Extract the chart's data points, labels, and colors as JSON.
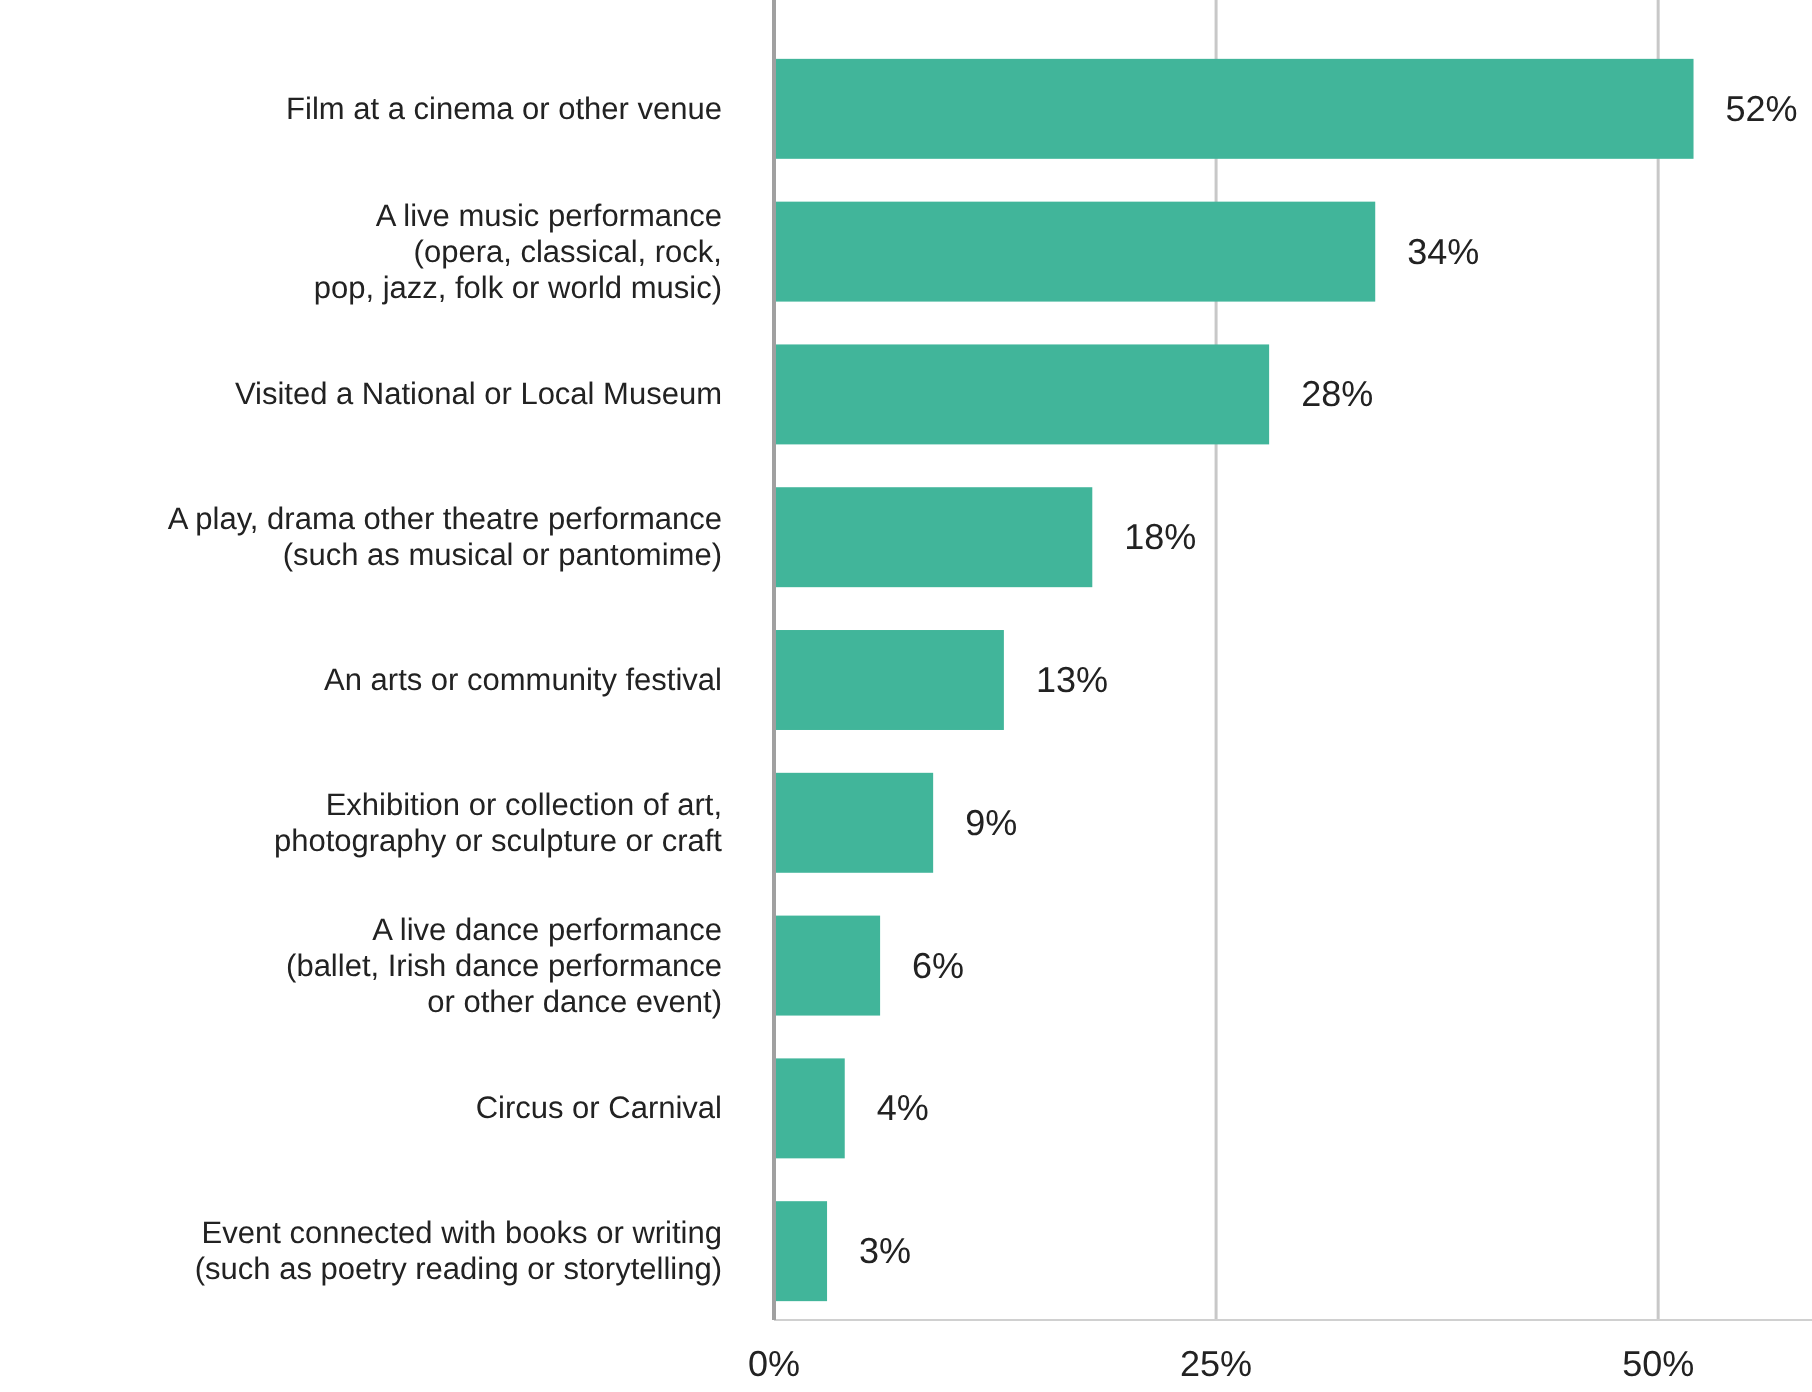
{
  "chart_data": {
    "type": "bar",
    "orientation": "horizontal",
    "categories": [
      "Film at a cinema or other venue",
      "A live music performance\n(opera, classical, rock,\npop, jazz, folk or world music)",
      "Visited a National or Local Museum",
      "A play, drama other theatre performance\n(such as musical or pantomime)",
      "An arts or community festival",
      "Exhibition or collection of art,\nphotography or sculpture or craft",
      "A live dance performance\n(ballet, Irish dance performance\nor other dance event)",
      "Circus or Carnival",
      "Event connected with books or writing\n(such as poetry reading or storytelling)"
    ],
    "values": [
      52,
      34,
      28,
      18,
      13,
      9,
      6,
      4,
      3
    ],
    "value_labels": [
      "52%",
      "34%",
      "28%",
      "18%",
      "13%",
      "9%",
      "6%",
      "4%",
      "3%"
    ],
    "color": "#41b59a",
    "xlim": [
      0,
      58.7
    ],
    "xticks": [
      {
        "value": 0,
        "label": "0%"
      },
      {
        "value": 25,
        "label": "25%"
      },
      {
        "value": 50,
        "label": "50%"
      }
    ],
    "grid": "x"
  }
}
